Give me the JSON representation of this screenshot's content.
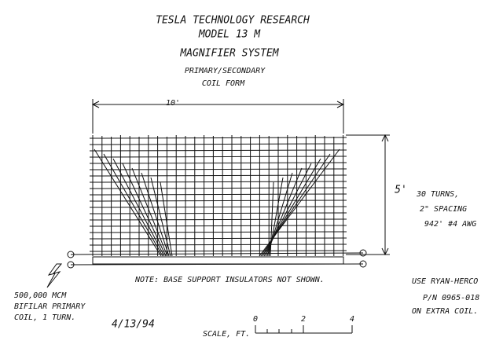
{
  "title": {
    "lines": [
      "TESLA TECHNOLOGY RESEARCH",
      "MODEL 13 M",
      "MAGNIFIER SYSTEM",
      "PRIMARY/SECONDARY",
      "COIL FORM"
    ]
  },
  "dimensions": {
    "width": "10'",
    "height": "5'"
  },
  "notes": {
    "winding": [
      "30 TURNS,",
      "2\" SPACING",
      "942' #4 AWG"
    ],
    "base": "NOTE: BASE SUPPORT INSULATORS NOT SHOWN.",
    "extra": [
      "USE RYAN-HERCO",
      "P/N 0965-018",
      "ON EXTRA COIL."
    ],
    "primary": [
      "500,000 MCM",
      "BIFILAR PRIMARY",
      "COIL, 1 TURN."
    ]
  },
  "date": "4/13/94",
  "scale": {
    "label": "SCALE, FT.",
    "ticks": [
      "0",
      "2",
      "4"
    ]
  }
}
